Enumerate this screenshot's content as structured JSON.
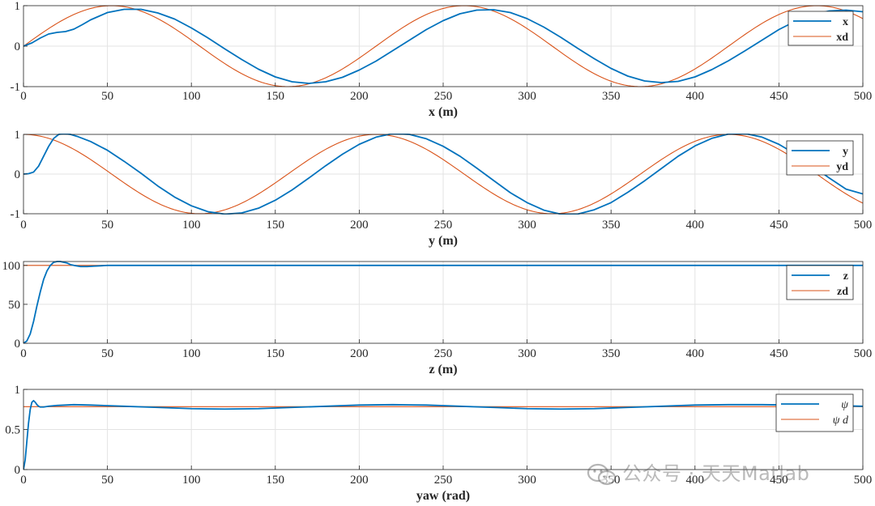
{
  "chart_data": [
    {
      "type": "line",
      "xlabel": "x (m)",
      "xlim": [
        0,
        500
      ],
      "ylim": [
        -1,
        1
      ],
      "xticks": [
        "0",
        "50",
        "100",
        "150",
        "200",
        "250",
        "300",
        "350",
        "400",
        "450",
        "500"
      ],
      "yticks": [
        "-1",
        "0",
        "1"
      ],
      "grid": true,
      "legend_position": "top-right",
      "series": [
        {
          "name": "x",
          "color": "#0072BD",
          "x": [
            0,
            5,
            10,
            15,
            20,
            25,
            30,
            35,
            40,
            50,
            60,
            70,
            80,
            90,
            100,
            110,
            120,
            130,
            140,
            150,
            160,
            170,
            180,
            190,
            200,
            210,
            220,
            230,
            240,
            250,
            260,
            270,
            280,
            290,
            300,
            310,
            320,
            330,
            340,
            350,
            360,
            370,
            380,
            390,
            400,
            410,
            420,
            430,
            440,
            450,
            460,
            470,
            480,
            490,
            500
          ],
          "values": [
            0,
            0.08,
            0.2,
            0.3,
            0.34,
            0.36,
            0.42,
            0.53,
            0.65,
            0.83,
            0.91,
            0.91,
            0.82,
            0.67,
            0.45,
            0.2,
            -0.07,
            -0.33,
            -0.57,
            -0.76,
            -0.88,
            -0.92,
            -0.88,
            -0.77,
            -0.59,
            -0.37,
            -0.11,
            0.15,
            0.41,
            0.63,
            0.8,
            0.89,
            0.9,
            0.83,
            0.68,
            0.47,
            0.22,
            -0.05,
            -0.31,
            -0.55,
            -0.74,
            -0.86,
            -0.9,
            -0.87,
            -0.76,
            -0.58,
            -0.36,
            -0.11,
            0.15,
            0.41,
            0.62,
            0.78,
            0.87,
            0.89,
            0.85
          ]
        },
        {
          "name": "xd",
          "color": "#D95319",
          "func": "sin",
          "amp": 1,
          "period": 210,
          "phase": 0,
          "step": 2
        }
      ]
    },
    {
      "type": "line",
      "xlabel": "y (m)",
      "xlim": [
        0,
        500
      ],
      "ylim": [
        -1,
        1
      ],
      "xticks": [
        "0",
        "50",
        "100",
        "150",
        "200",
        "250",
        "300",
        "350",
        "400",
        "450",
        "500"
      ],
      "yticks": [
        "-1",
        "0",
        "1"
      ],
      "grid": true,
      "legend_position": "top-right",
      "series": [
        {
          "name": "y",
          "color": "#0072BD",
          "x": [
            0,
            3,
            6,
            9,
            12,
            15,
            18,
            21,
            24,
            28,
            32,
            40,
            50,
            60,
            70,
            80,
            90,
            100,
            110,
            120,
            130,
            140,
            150,
            160,
            170,
            180,
            190,
            200,
            210,
            220,
            230,
            240,
            250,
            260,
            270,
            280,
            290,
            300,
            310,
            320,
            330,
            340,
            350,
            360,
            370,
            380,
            390,
            400,
            410,
            420,
            430,
            440,
            450,
            460,
            470,
            480,
            490,
            500
          ],
          "values": [
            0,
            0.01,
            0.05,
            0.2,
            0.45,
            0.7,
            0.9,
            1.0,
            1.02,
            1.0,
            0.95,
            0.82,
            0.6,
            0.32,
            0.02,
            -0.3,
            -0.58,
            -0.8,
            -0.95,
            -1.01,
            -0.98,
            -0.86,
            -0.66,
            -0.4,
            -0.1,
            0.21,
            0.5,
            0.75,
            0.93,
            1.02,
            1.0,
            0.89,
            0.7,
            0.45,
            0.15,
            -0.16,
            -0.47,
            -0.72,
            -0.91,
            -1.01,
            -1.01,
            -0.9,
            -0.72,
            -0.46,
            -0.17,
            0.14,
            0.45,
            0.71,
            0.9,
            1.01,
            1.02,
            0.93,
            0.75,
            0.5,
            0.2,
            -0.1,
            -0.38,
            -0.5
          ]
        },
        {
          "name": "yd",
          "color": "#D95319",
          "func": "cos",
          "amp": 1,
          "period": 210,
          "phase": 0,
          "step": 2
        }
      ]
    },
    {
      "type": "line",
      "xlabel": "z (m)",
      "xlim": [
        0,
        500
      ],
      "ylim": [
        0,
        105
      ],
      "xticks": [
        "0",
        "50",
        "100",
        "150",
        "200",
        "250",
        "300",
        "350",
        "400",
        "450",
        "500"
      ],
      "yticks": [
        "0",
        "50",
        "100"
      ],
      "yticks_values": [
        0,
        50,
        100
      ],
      "grid": true,
      "legend_position": "top-right",
      "series": [
        {
          "name": "z",
          "color": "#0072BD",
          "x": [
            0,
            2,
            4,
            6,
            8,
            10,
            12,
            14,
            16,
            18,
            20,
            22,
            24,
            26,
            28,
            30,
            34,
            38,
            42,
            46,
            50,
            60,
            80,
            100,
            500
          ],
          "values": [
            0,
            3,
            12,
            28,
            48,
            66,
            82,
            93,
            100,
            104,
            105,
            105,
            104,
            103,
            101,
            100,
            98.5,
            98.5,
            99,
            99.5,
            100,
            100,
            100,
            100,
            100
          ]
        },
        {
          "name": "zd",
          "color": "#D95319",
          "x": [
            0,
            500
          ],
          "values": [
            100,
            100
          ]
        }
      ]
    },
    {
      "type": "line",
      "xlabel": "yaw (rad)",
      "xlim": [
        0,
        500
      ],
      "ylim": [
        0,
        1
      ],
      "xticks": [
        "0",
        "50",
        "100",
        "150",
        "200",
        "250",
        "300",
        "350",
        "400",
        "450",
        "500"
      ],
      "yticks": [
        "0",
        "0.5",
        "1"
      ],
      "yticks_values": [
        0,
        0.5,
        1
      ],
      "grid": true,
      "legend_position": "top-right",
      "series": [
        {
          "name": "ψ",
          "color": "#0072BD",
          "x": [
            0,
            1,
            2,
            3,
            4,
            5,
            6,
            7,
            8,
            9,
            10,
            12,
            15,
            20,
            30,
            40,
            60,
            80,
            100,
            120,
            140,
            160,
            180,
            200,
            220,
            240,
            260,
            280,
            300,
            320,
            340,
            360,
            380,
            400,
            420,
            440,
            460,
            480,
            500
          ],
          "values": [
            0,
            0.12,
            0.35,
            0.58,
            0.75,
            0.84,
            0.86,
            0.84,
            0.81,
            0.79,
            0.78,
            0.78,
            0.79,
            0.8,
            0.81,
            0.805,
            0.79,
            0.775,
            0.76,
            0.755,
            0.76,
            0.775,
            0.79,
            0.805,
            0.81,
            0.805,
            0.79,
            0.775,
            0.76,
            0.755,
            0.76,
            0.775,
            0.79,
            0.805,
            0.81,
            0.81,
            0.805,
            0.8,
            0.79
          ]
        },
        {
          "name": "ψ d",
          "color": "#D95319",
          "x": [
            0,
            500
          ],
          "values": [
            0.785,
            0.785
          ]
        }
      ]
    }
  ],
  "legend_labels": [
    {
      "series1": "x",
      "series2": "xd"
    },
    {
      "series1": "y",
      "series2": "yd"
    },
    {
      "series1": "z",
      "series2": "zd"
    },
    {
      "series1": "ψ",
      "series2": "ψ  d"
    }
  ],
  "watermark": {
    "text": "公众号 · 天天Matlab",
    "icon": "wechat-icon"
  }
}
